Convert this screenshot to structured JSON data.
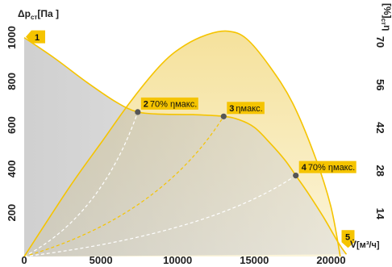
{
  "chart_data": {
    "type": "line",
    "x_axis": {
      "label_symbol": "V̇",
      "label_unit": "[м³/ч]",
      "ticks": [
        "0",
        "5000",
        "10000",
        "15000",
        "20000"
      ],
      "range": [
        0,
        21500
      ]
    },
    "y_axis_left": {
      "label_main": "Δp",
      "label_sub": "ст",
      "label_unit": "[Па ]",
      "ticks": [
        "200",
        "400",
        "600",
        "800",
        "1000"
      ],
      "range": [
        0,
        1050
      ]
    },
    "y_axis_right": {
      "label_main": "η",
      "label_sub": "ст",
      "label_unit": "[%]",
      "ticks": [
        "14",
        "28",
        "42",
        "56",
        "70"
      ],
      "range": [
        0,
        75
      ]
    },
    "series": [
      {
        "kind": "pressure",
        "x": [
          0,
          2000,
          4000,
          6000,
          7400,
          9000,
          11000,
          13000,
          14000,
          15000,
          16000,
          17000,
          17700,
          18500,
          19500,
          20500,
          21000
        ],
        "y": [
          1000,
          905,
          800,
          705,
          660,
          650,
          648,
          640,
          625,
          590,
          520,
          440,
          370,
          290,
          180,
          60,
          10
        ]
      },
      {
        "kind": "efficiency",
        "x": [
          0,
          3000,
          5000,
          7000,
          9000,
          10500,
          12000,
          13300,
          14500,
          16000,
          17500,
          19000,
          20000,
          20600
        ],
        "y": [
          0,
          23,
          37,
          51,
          63,
          69,
          72.5,
          73.5,
          71,
          62,
          50,
          32,
          16,
          0
        ]
      }
    ],
    "operating_points": [
      {
        "id": "1",
        "label": "",
        "x": 0,
        "y": 1000,
        "marker": false
      },
      {
        "id": "2",
        "label": "70% ηмакс.",
        "x": 7400,
        "y": 660,
        "marker": true
      },
      {
        "id": "3",
        "label": "ηмакс.",
        "x": 13000,
        "y": 640,
        "marker": true
      },
      {
        "id": "4",
        "label": "70% ηмакс.",
        "x": 17700,
        "y": 370,
        "marker": true
      },
      {
        "id": "5",
        "label": "",
        "x": 21000,
        "y": 10,
        "marker": false
      }
    ],
    "grid": false,
    "colors": {
      "curve": "#f5c400",
      "label_bg": "#f5c400",
      "shade_gray": "#b3b3b3",
      "shade_yellow": "#f3e2a2",
      "marker": "#555555",
      "dashed": "#ffffff",
      "dashed_accent": "#f5c400"
    }
  }
}
